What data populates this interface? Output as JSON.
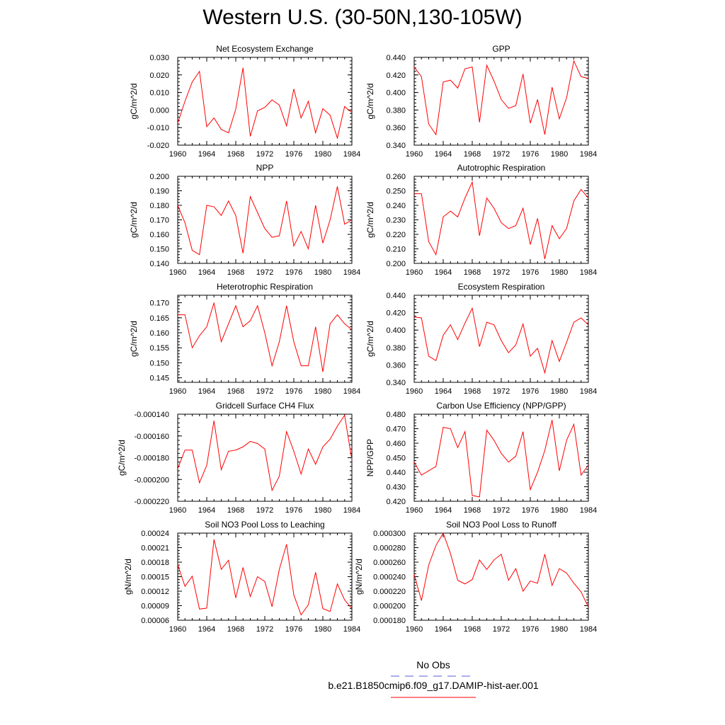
{
  "title": "Western U.S. (30-50N,130-105W)",
  "legend": {
    "entries": [
      {
        "label": "No Obs",
        "color": "#5a5ad8",
        "style": "dashed"
      },
      {
        "label": "b.e21.B1850cmip6.f09_g17.DAMIP-hist-aer.001",
        "color": "#ff0000",
        "style": "solid"
      }
    ]
  },
  "chart_data": [
    {
      "type": "line",
      "title": "Net Ecosystem Exchange",
      "ylabel": "gC/m^2/d",
      "x": [
        1960,
        1961,
        1962,
        1963,
        1964,
        1965,
        1966,
        1967,
        1968,
        1969,
        1970,
        1971,
        1972,
        1973,
        1974,
        1975,
        1976,
        1977,
        1978,
        1979,
        1980,
        1981,
        1982,
        1983,
        1984
      ],
      "xticks": [
        "1960",
        "1964",
        "1968",
        "1972",
        "1976",
        "1980",
        "1984"
      ],
      "xlim": [
        1960,
        1984
      ],
      "ylim": [
        -0.02,
        0.03
      ],
      "yticks": [
        -0.02,
        -0.01,
        0,
        0.01,
        0.02,
        0.03
      ],
      "ytick_labels": [
        "-0.020",
        "-0.010",
        "0.000",
        "0.010",
        "0.020",
        "0.030"
      ],
      "series": [
        {
          "color": "#ff0000",
          "values": [
            -0.0075,
            0.005,
            0.016,
            0.022,
            -0.0095,
            -0.0045,
            -0.011,
            -0.013,
            0.0005,
            0.024,
            -0.015,
            -0.0005,
            0.0015,
            0.0058,
            0.0028,
            -0.009,
            0.012,
            -0.0045,
            0.005,
            -0.013,
            0.0008,
            -0.003,
            -0.016,
            0.002,
            -0.0015
          ]
        }
      ]
    },
    {
      "type": "line",
      "title": "GPP",
      "ylabel": "gC/m^2/d",
      "x": [
        1960,
        1961,
        1962,
        1963,
        1964,
        1965,
        1966,
        1967,
        1968,
        1969,
        1970,
        1971,
        1972,
        1973,
        1974,
        1975,
        1976,
        1977,
        1978,
        1979,
        1980,
        1981,
        1982,
        1983,
        1984
      ],
      "xticks": [
        "1960",
        "1964",
        "1968",
        "1972",
        "1976",
        "1980",
        "1984"
      ],
      "xlim": [
        1960,
        1984
      ],
      "ylim": [
        0.34,
        0.44
      ],
      "yticks": [
        0.34,
        0.36,
        0.38,
        0.4,
        0.42,
        0.44
      ],
      "ytick_labels": [
        "0.340",
        "0.360",
        "0.380",
        "0.400",
        "0.420",
        "0.440"
      ],
      "series": [
        {
          "color": "#ff0000",
          "values": [
            0.429,
            0.418,
            0.364,
            0.352,
            0.412,
            0.414,
            0.405,
            0.427,
            0.429,
            0.366,
            0.431,
            0.413,
            0.392,
            0.382,
            0.385,
            0.421,
            0.365,
            0.392,
            0.352,
            0.406,
            0.37,
            0.394,
            0.436,
            0.418,
            0.416
          ]
        }
      ]
    },
    {
      "type": "line",
      "title": "NPP",
      "ylabel": "gC/m^2/d",
      "x": [
        1960,
        1961,
        1962,
        1963,
        1964,
        1965,
        1966,
        1967,
        1968,
        1969,
        1970,
        1971,
        1972,
        1973,
        1974,
        1975,
        1976,
        1977,
        1978,
        1979,
        1980,
        1981,
        1982,
        1983,
        1984
      ],
      "xticks": [
        "1960",
        "1964",
        "1968",
        "1972",
        "1976",
        "1980",
        "1984"
      ],
      "xlim": [
        1960,
        1984
      ],
      "ylim": [
        0.14,
        0.2
      ],
      "yticks": [
        0.14,
        0.15,
        0.16,
        0.17,
        0.18,
        0.19,
        0.2
      ],
      "ytick_labels": [
        "0.140",
        "0.150",
        "0.160",
        "0.170",
        "0.180",
        "0.190",
        "0.200"
      ],
      "series": [
        {
          "color": "#ff0000",
          "values": [
            0.18,
            0.168,
            0.149,
            0.146,
            0.18,
            0.179,
            0.173,
            0.183,
            0.173,
            0.147,
            0.186,
            0.175,
            0.164,
            0.158,
            0.159,
            0.183,
            0.152,
            0.162,
            0.15,
            0.18,
            0.154,
            0.17,
            0.193,
            0.167,
            0.17
          ]
        }
      ]
    },
    {
      "type": "line",
      "title": "Autotrophic Respiration",
      "ylabel": "gC/m^2/d",
      "x": [
        1960,
        1961,
        1962,
        1963,
        1964,
        1965,
        1966,
        1967,
        1968,
        1969,
        1970,
        1971,
        1972,
        1973,
        1974,
        1975,
        1976,
        1977,
        1978,
        1979,
        1980,
        1981,
        1982,
        1983,
        1984
      ],
      "xticks": [
        "1960",
        "1964",
        "1968",
        "1972",
        "1976",
        "1980",
        "1984"
      ],
      "xlim": [
        1960,
        1984
      ],
      "ylim": [
        0.2,
        0.26
      ],
      "yticks": [
        0.2,
        0.21,
        0.22,
        0.23,
        0.24,
        0.25,
        0.26
      ],
      "ytick_labels": [
        "0.200",
        "0.210",
        "0.220",
        "0.230",
        "0.240",
        "0.250",
        "0.260"
      ],
      "series": [
        {
          "color": "#ff0000",
          "values": [
            0.248,
            0.248,
            0.215,
            0.206,
            0.232,
            0.236,
            0.232,
            0.245,
            0.256,
            0.219,
            0.245,
            0.238,
            0.228,
            0.224,
            0.226,
            0.238,
            0.213,
            0.231,
            0.203,
            0.226,
            0.217,
            0.224,
            0.243,
            0.251,
            0.245
          ]
        }
      ]
    },
    {
      "type": "line",
      "title": "Heterotrophic Respiration",
      "ylabel": "gC/m^2/d",
      "x": [
        1960,
        1961,
        1962,
        1963,
        1964,
        1965,
        1966,
        1967,
        1968,
        1969,
        1970,
        1971,
        1972,
        1973,
        1974,
        1975,
        1976,
        1977,
        1978,
        1979,
        1980,
        1981,
        1982,
        1983,
        1984
      ],
      "xticks": [
        "1960",
        "1964",
        "1968",
        "1972",
        "1976",
        "1980",
        "1984"
      ],
      "xlim": [
        1960,
        1984
      ],
      "ylim": [
        0.1435,
        0.1725
      ],
      "yticks": [
        0.145,
        0.15,
        0.155,
        0.16,
        0.165,
        0.17
      ],
      "ytick_labels": [
        "0.145",
        "0.150",
        "0.155",
        "0.160",
        "0.165",
        "0.170"
      ],
      "series": [
        {
          "color": "#ff0000",
          "values": [
            0.166,
            0.166,
            0.155,
            0.159,
            0.162,
            0.17,
            0.157,
            0.163,
            0.169,
            0.162,
            0.164,
            0.169,
            0.16,
            0.149,
            0.157,
            0.169,
            0.157,
            0.149,
            0.149,
            0.162,
            0.147,
            0.163,
            0.166,
            0.163,
            0.161
          ]
        }
      ]
    },
    {
      "type": "line",
      "title": "Ecosystem Respiration",
      "ylabel": "gC/m^2/d",
      "x": [
        1960,
        1961,
        1962,
        1963,
        1964,
        1965,
        1966,
        1967,
        1968,
        1969,
        1970,
        1971,
        1972,
        1973,
        1974,
        1975,
        1976,
        1977,
        1978,
        1979,
        1980,
        1981,
        1982,
        1983,
        1984
      ],
      "xticks": [
        "1960",
        "1964",
        "1968",
        "1972",
        "1976",
        "1980",
        "1984"
      ],
      "xlim": [
        1960,
        1984
      ],
      "ylim": [
        0.34,
        0.44
      ],
      "yticks": [
        0.34,
        0.36,
        0.38,
        0.4,
        0.42,
        0.44
      ],
      "ytick_labels": [
        "0.340",
        "0.360",
        "0.380",
        "0.400",
        "0.420",
        "0.440"
      ],
      "series": [
        {
          "color": "#ff0000",
          "values": [
            0.415,
            0.414,
            0.37,
            0.365,
            0.394,
            0.406,
            0.389,
            0.408,
            0.425,
            0.381,
            0.409,
            0.406,
            0.388,
            0.374,
            0.383,
            0.407,
            0.37,
            0.379,
            0.351,
            0.388,
            0.364,
            0.386,
            0.409,
            0.414,
            0.406
          ]
        }
      ]
    },
    {
      "type": "line",
      "title": "Gridcell Surface CH4 Flux",
      "ylabel": "gC/m^2/d",
      "x": [
        1960,
        1961,
        1962,
        1963,
        1964,
        1965,
        1966,
        1967,
        1968,
        1969,
        1970,
        1971,
        1972,
        1973,
        1974,
        1975,
        1976,
        1977,
        1978,
        1979,
        1980,
        1981,
        1982,
        1983,
        1984
      ],
      "xticks": [
        "1960",
        "1964",
        "1968",
        "1972",
        "1976",
        "1980",
        "1984"
      ],
      "xlim": [
        1960,
        1984
      ],
      "ylim": [
        -0.00022,
        -0.00014
      ],
      "yticks": [
        -0.00022,
        -0.0002,
        -0.00018,
        -0.00016,
        -0.00014
      ],
      "ytick_labels": [
        "-0.000220",
        "-0.000200",
        "-0.000180",
        "-0.000160",
        "-0.000140"
      ],
      "series": [
        {
          "color": "#ff0000",
          "values": [
            -0.00019,
            -0.000173,
            -0.000173,
            -0.000203,
            -0.000187,
            -0.000146,
            -0.000191,
            -0.000174,
            -0.000173,
            -0.00017,
            -0.000165,
            -0.000167,
            -0.000172,
            -0.00021,
            -0.000197,
            -0.000156,
            -0.000174,
            -0.000195,
            -0.000172,
            -0.000186,
            -0.00017,
            -0.000163,
            -0.000151,
            -0.000141,
            -0.000182
          ]
        }
      ]
    },
    {
      "type": "line",
      "title": "Carbon Use Efficiency (NPP/GPP)",
      "ylabel": "NPP/GPP",
      "x": [
        1960,
        1961,
        1962,
        1963,
        1964,
        1965,
        1966,
        1967,
        1968,
        1969,
        1970,
        1971,
        1972,
        1973,
        1974,
        1975,
        1976,
        1977,
        1978,
        1979,
        1980,
        1981,
        1982,
        1983,
        1984
      ],
      "xticks": [
        "1960",
        "1964",
        "1968",
        "1972",
        "1976",
        "1980",
        "1984"
      ],
      "xlim": [
        1960,
        1984
      ],
      "ylim": [
        0.42,
        0.48
      ],
      "yticks": [
        0.42,
        0.43,
        0.44,
        0.45,
        0.46,
        0.47,
        0.48
      ],
      "ytick_labels": [
        "0.420",
        "0.430",
        "0.440",
        "0.450",
        "0.460",
        "0.470",
        "0.480"
      ],
      "series": [
        {
          "color": "#ff0000",
          "values": [
            0.447,
            0.438,
            0.441,
            0.444,
            0.471,
            0.47,
            0.457,
            0.468,
            0.424,
            0.423,
            0.469,
            0.462,
            0.453,
            0.447,
            0.451,
            0.468,
            0.428,
            0.44,
            0.455,
            0.476,
            0.441,
            0.462,
            0.473,
            0.438,
            0.445
          ]
        }
      ]
    },
    {
      "type": "line",
      "title": "Soil NO3 Pool Loss to Leaching",
      "ylabel": "gN/m^2/d",
      "x": [
        1960,
        1961,
        1962,
        1963,
        1964,
        1965,
        1966,
        1967,
        1968,
        1969,
        1970,
        1971,
        1972,
        1973,
        1974,
        1975,
        1976,
        1977,
        1978,
        1979,
        1980,
        1981,
        1982,
        1983,
        1984
      ],
      "xticks": [
        "1960",
        "1964",
        "1968",
        "1972",
        "1976",
        "1980",
        "1984"
      ],
      "xlim": [
        1960,
        1984
      ],
      "ylim": [
        6e-05,
        0.00024
      ],
      "yticks": [
        6e-05,
        9e-05,
        0.00012,
        0.00015,
        0.00018,
        0.00021,
        0.00024
      ],
      "ytick_labels": [
        "0.00006",
        "0.00009",
        "0.00012",
        "0.00015",
        "0.00018",
        "0.00021",
        "0.00024"
      ],
      "series": [
        {
          "color": "#ff0000",
          "values": [
            0.000175,
            0.00013,
            0.000151,
            8.3e-05,
            8.5e-05,
            0.000227,
            0.000165,
            0.000184,
            0.000106,
            0.000169,
            0.000109,
            0.00015,
            0.00014,
            8.8e-05,
            0.000165,
            0.000217,
            0.000112,
            7.1e-05,
            9.2e-05,
            0.000159,
            8.4e-05,
            7.8e-05,
            0.000135,
            0.000102,
            8.4e-05
          ]
        }
      ]
    },
    {
      "type": "line",
      "title": "Soil NO3 Pool Loss to Runoff",
      "ylabel": "gN/m^2/d",
      "x": [
        1960,
        1961,
        1962,
        1963,
        1964,
        1965,
        1966,
        1967,
        1968,
        1969,
        1970,
        1971,
        1972,
        1973,
        1974,
        1975,
        1976,
        1977,
        1978,
        1979,
        1980,
        1981,
        1982,
        1983,
        1984
      ],
      "xticks": [
        "1960",
        "1964",
        "1968",
        "1972",
        "1976",
        "1980",
        "1984"
      ],
      "xlim": [
        1960,
        1984
      ],
      "ylim": [
        0.00018,
        0.0003
      ],
      "yticks": [
        0.00018,
        0.0002,
        0.00022,
        0.00024,
        0.00026,
        0.00028,
        0.0003
      ],
      "ytick_labels": [
        "0.000180",
        "0.000200",
        "0.000220",
        "0.000240",
        "0.000260",
        "0.000280",
        "0.000300"
      ],
      "series": [
        {
          "color": "#ff0000",
          "values": [
            0.000243,
            0.000207,
            0.000256,
            0.000283,
            0.0003,
            0.000272,
            0.000235,
            0.00023,
            0.000236,
            0.000263,
            0.00025,
            0.000263,
            0.000271,
            0.000235,
            0.000251,
            0.00022,
            0.000234,
            0.000231,
            0.000271,
            0.000228,
            0.000251,
            0.000245,
            0.000231,
            0.000219,
            0.000198
          ]
        }
      ]
    }
  ]
}
